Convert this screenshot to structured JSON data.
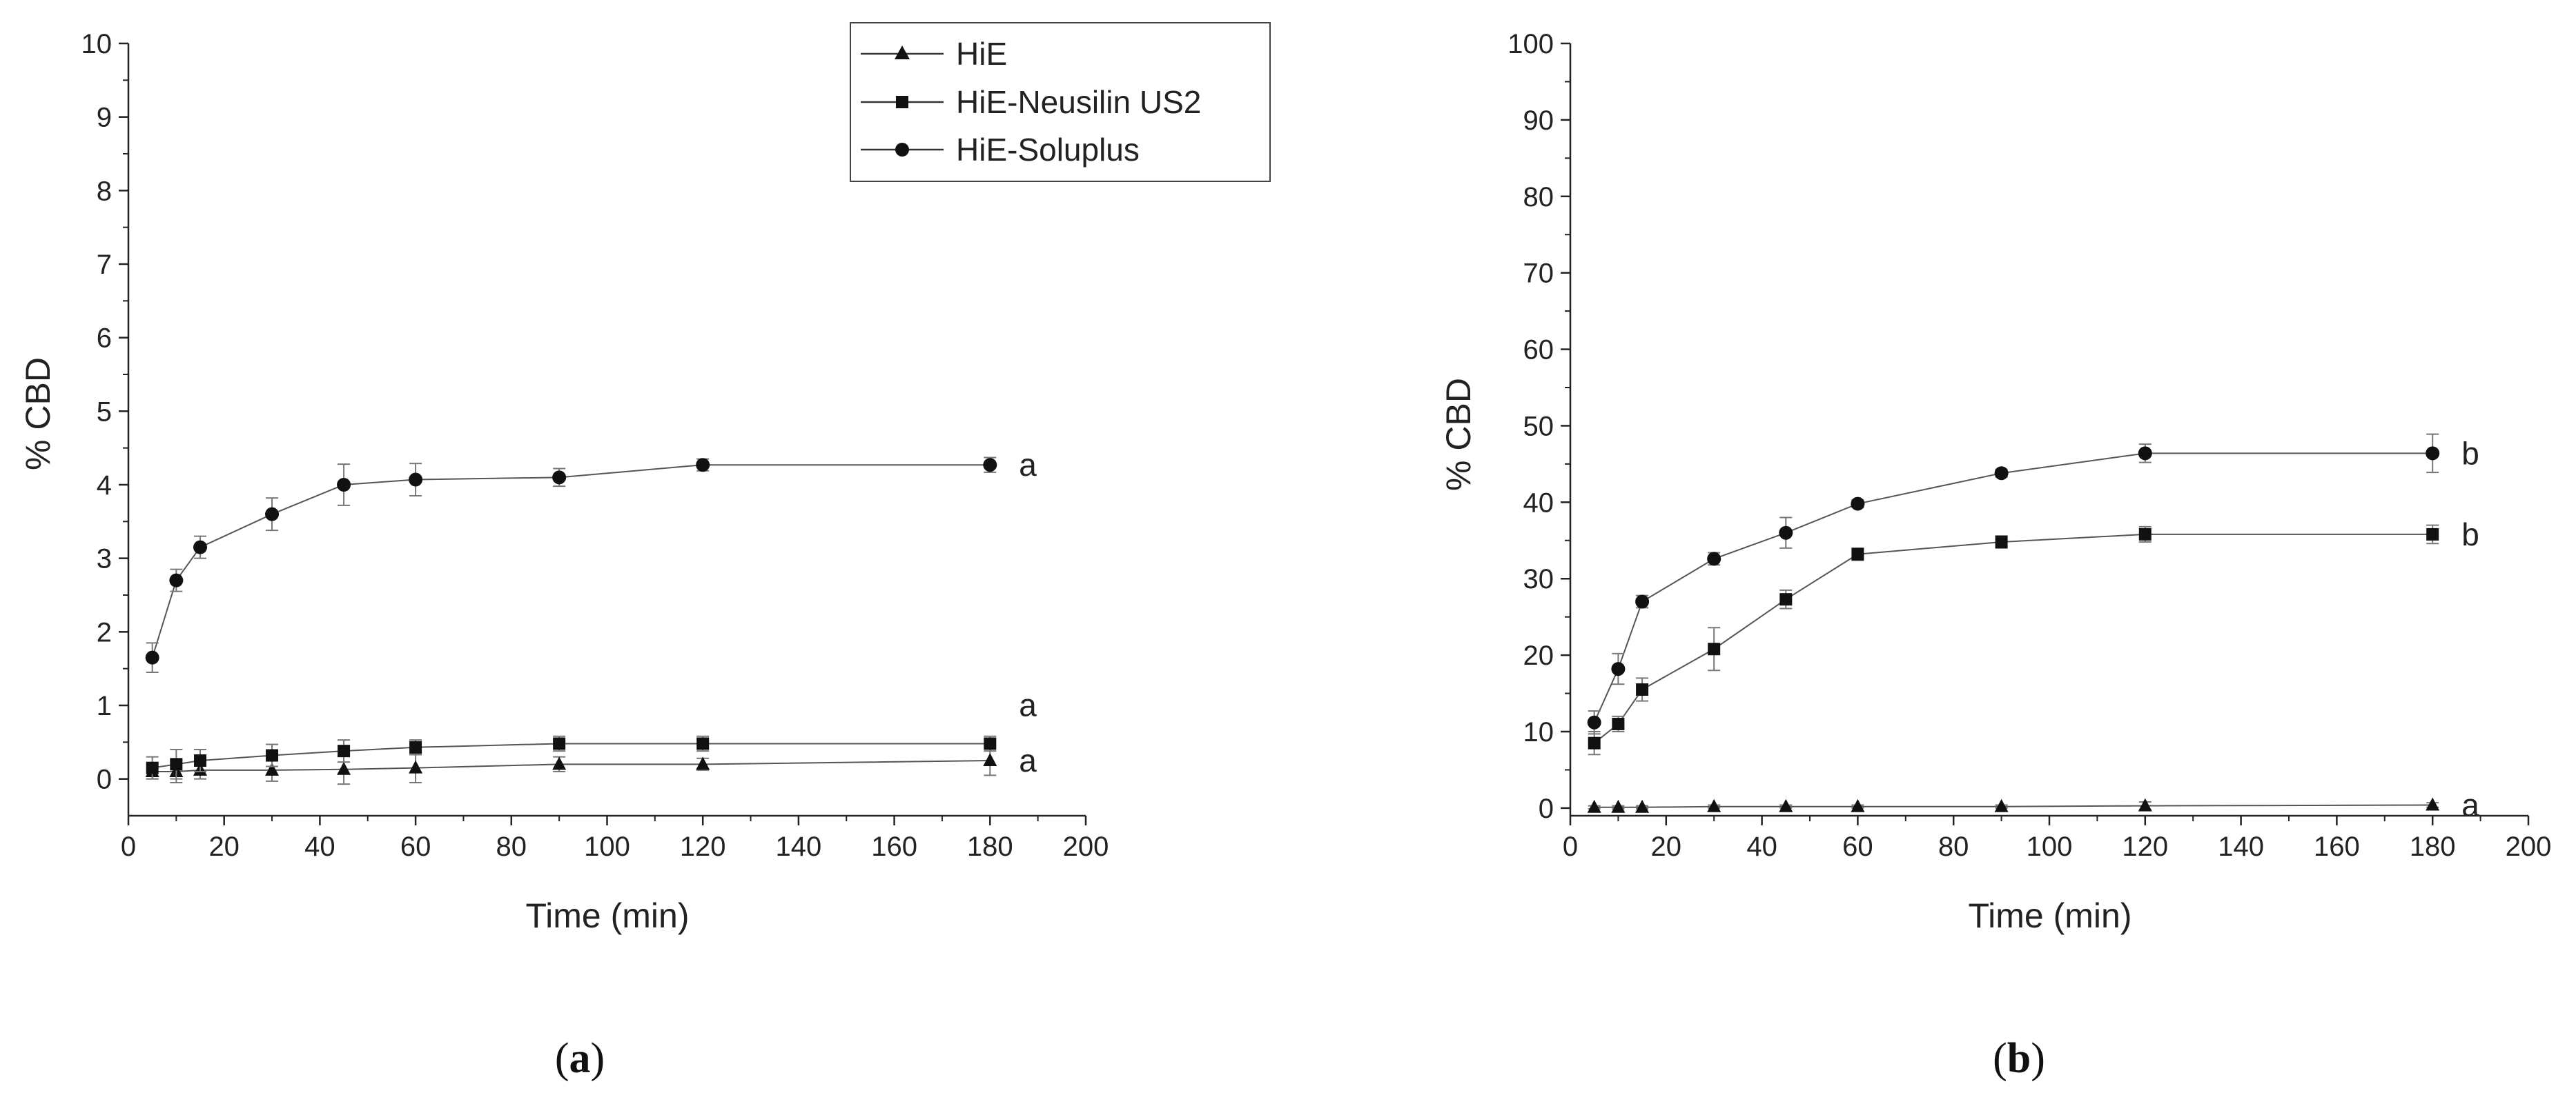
{
  "chart_data": [
    {
      "type": "line",
      "panel_label_open": "(",
      "panel_label_letter": "a",
      "panel_label_close": ")",
      "xlabel": "Time (min)",
      "ylabel": "% CBD",
      "xlim": [
        0,
        200
      ],
      "ylim": [
        -0.5,
        10
      ],
      "xticks": [
        0,
        20,
        40,
        60,
        80,
        100,
        120,
        140,
        160,
        180,
        200
      ],
      "yticks": [
        0,
        1,
        2,
        3,
        4,
        5,
        6,
        7,
        8,
        9,
        10
      ],
      "legend": {
        "placement": "top-center"
      },
      "series": [
        {
          "name": "HiE",
          "marker": "triangle",
          "x": [
            5,
            10,
            15,
            30,
            45,
            60,
            90,
            120,
            180
          ],
          "y": [
            0.1,
            0.1,
            0.12,
            0.12,
            0.13,
            0.15,
            0.2,
            0.2,
            0.25
          ],
          "err": [
            0.1,
            0.15,
            0.12,
            0.15,
            0.2,
            0.2,
            0.1,
            0.08,
            0.2
          ],
          "sig_label": "a"
        },
        {
          "name": "HiE-Neusilin US2",
          "marker": "square",
          "x": [
            5,
            10,
            15,
            30,
            45,
            60,
            90,
            120,
            180
          ],
          "y": [
            0.15,
            0.2,
            0.25,
            0.32,
            0.38,
            0.43,
            0.48,
            0.48,
            0.48
          ],
          "err": [
            0.15,
            0.2,
            0.15,
            0.15,
            0.15,
            0.1,
            0.1,
            0.1,
            0.1
          ],
          "sig_label": "a"
        },
        {
          "name": "HiE-Soluplus",
          "marker": "circle",
          "x": [
            5,
            10,
            15,
            30,
            45,
            60,
            90,
            120,
            180
          ],
          "y": [
            1.65,
            2.7,
            3.15,
            3.6,
            4.0,
            4.07,
            4.1,
            4.27,
            4.27
          ],
          "err": [
            0.2,
            0.15,
            0.15,
            0.22,
            0.28,
            0.22,
            0.12,
            0.08,
            0.1
          ],
          "sig_label": "a"
        }
      ]
    },
    {
      "type": "line",
      "panel_label_open": "(",
      "panel_label_letter": "b",
      "panel_label_close": ")",
      "xlabel": "Time (min)",
      "ylabel": "% CBD",
      "xlim": [
        0,
        200
      ],
      "ylim": [
        -1,
        100
      ],
      "xticks": [
        0,
        20,
        40,
        60,
        80,
        100,
        120,
        140,
        160,
        180,
        200
      ],
      "yticks": [
        0,
        10,
        20,
        30,
        40,
        50,
        60,
        70,
        80,
        90,
        100
      ],
      "series": [
        {
          "name": "HiE",
          "marker": "triangle",
          "x": [
            5,
            10,
            15,
            30,
            45,
            60,
            90,
            120,
            180
          ],
          "y": [
            0.1,
            0.1,
            0.1,
            0.2,
            0.2,
            0.2,
            0.2,
            0.3,
            0.4
          ],
          "err": [
            0.2,
            0.2,
            0.2,
            0.2,
            0.2,
            0.2,
            0.2,
            0.5,
            0.3
          ],
          "sig_label": "a"
        },
        {
          "name": "HiE-Neusilin US2",
          "marker": "square",
          "x": [
            5,
            10,
            15,
            30,
            45,
            60,
            90,
            120,
            180
          ],
          "y": [
            8.5,
            11,
            15.5,
            20.8,
            27.3,
            33.2,
            34.8,
            35.8,
            35.8
          ],
          "err": [
            1.5,
            1.0,
            1.5,
            2.8,
            1.2,
            0.8,
            0.8,
            1.0,
            1.2
          ],
          "sig_label": "b"
        },
        {
          "name": "HiE-Soluplus",
          "marker": "circle",
          "x": [
            5,
            10,
            15,
            30,
            45,
            60,
            90,
            120,
            180
          ],
          "y": [
            11.2,
            18.2,
            27.0,
            32.6,
            36.0,
            39.8,
            43.8,
            46.4,
            46.4
          ],
          "err": [
            1.5,
            2.0,
            0.8,
            0.8,
            2.0,
            0.5,
            0.5,
            1.2,
            2.5
          ],
          "sig_label": "b"
        }
      ]
    }
  ]
}
